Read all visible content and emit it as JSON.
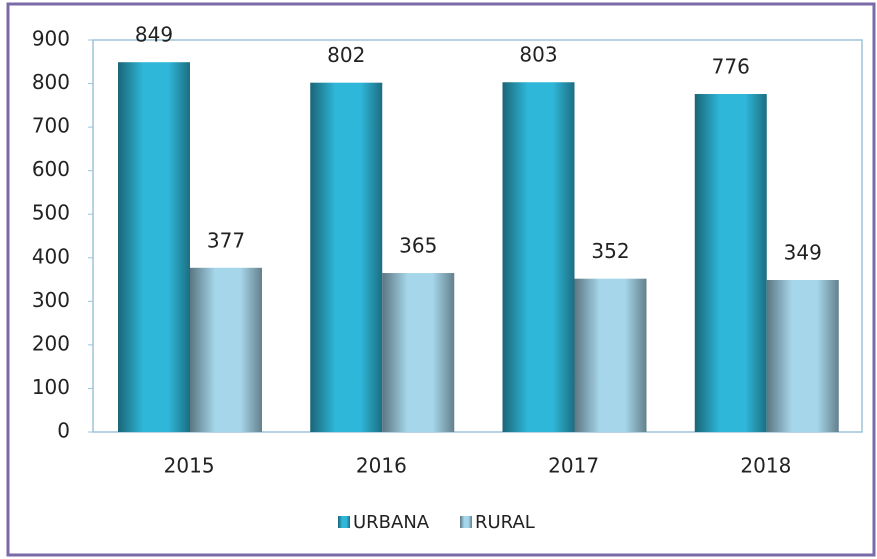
{
  "chart_data": {
    "type": "bar",
    "categories": [
      "2015",
      "2016",
      "2017",
      "2018"
    ],
    "series": [
      {
        "name": "URBANA",
        "color": "#2fb7d9",
        "values": [
          849,
          802,
          803,
          776
        ]
      },
      {
        "name": "RURAL",
        "color": "#a6d6ea",
        "values": [
          377,
          365,
          352,
          349
        ]
      }
    ],
    "ylim": [
      0,
      900
    ],
    "yticks": [
      0,
      100,
      200,
      300,
      400,
      500,
      600,
      700,
      800,
      900
    ],
    "legend": "bottom"
  }
}
